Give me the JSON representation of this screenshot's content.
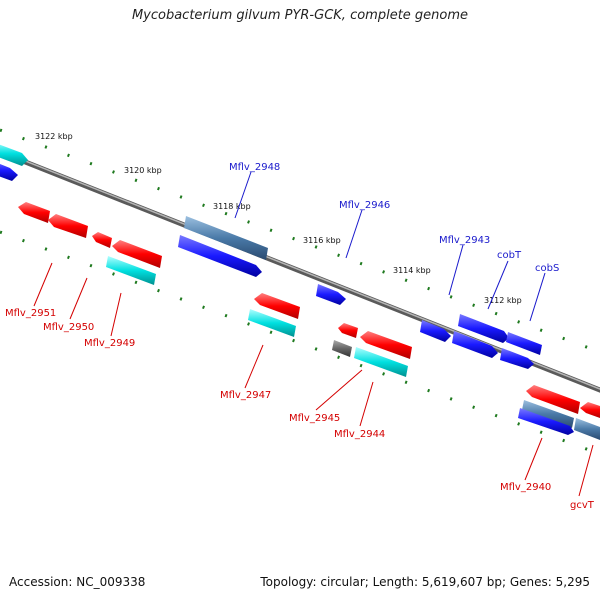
{
  "title": "Mycobacterium gilvum PYR-GCK, complete genome",
  "footer": {
    "accession": "Accession: NC_009338",
    "topology": "Topology: circular; Length: 5,619,607 bp; Genes: 5,295"
  },
  "colors": {
    "backbone": "#8a8a8a",
    "tick": "#1f7a1f",
    "forward_gene": "#1a1aff",
    "forward_gene_alt": "#4a7aa8",
    "reverse_gene": "#ff0000",
    "cds_cyan": "#00e0e0",
    "pseudo": "#666666",
    "label_forward": "#1a1acc",
    "label_reverse": "#d40000"
  },
  "ticks": [
    {
      "label": "3122 kbp",
      "kbp": 3122
    },
    {
      "label": "3120 kbp",
      "kbp": 3120
    },
    {
      "label": "3118 kbp",
      "kbp": 3118
    },
    {
      "label": "3116 kbp",
      "kbp": 3116
    },
    {
      "label": "3114 kbp",
      "kbp": 3114
    },
    {
      "label": "3112 kbp",
      "kbp": 3112
    }
  ],
  "gene_labels_forward": [
    {
      "label": "Mflv_2948"
    },
    {
      "label": "Mflv_2946"
    },
    {
      "label": "Mflv_2943"
    },
    {
      "label": "cobT"
    },
    {
      "label": "cobS"
    }
  ],
  "gene_labels_reverse": [
    {
      "label": "Mflv_2951"
    },
    {
      "label": "Mflv_2950"
    },
    {
      "label": "Mflv_2949"
    },
    {
      "label": "Mflv_2947"
    },
    {
      "label": "Mflv_2945"
    },
    {
      "label": "Mflv_2944"
    },
    {
      "label": "Mflv_2940"
    },
    {
      "label": "gcvT"
    }
  ]
}
